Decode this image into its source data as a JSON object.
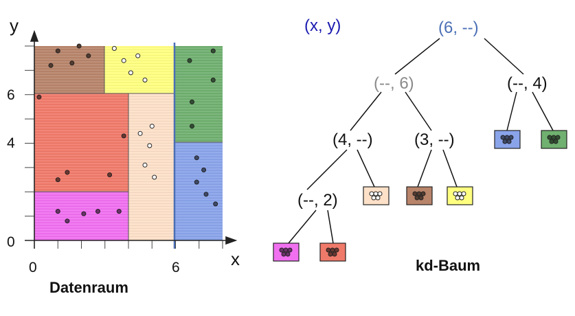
{
  "left_panel": {
    "axis_x_label": "x",
    "axis_y_label": "y",
    "tick_x": [
      "0",
      "6"
    ],
    "tick_y": [
      "0",
      "4",
      "6"
    ],
    "caption": "Datenraum",
    "region_colors": {
      "brown": "#b8846a",
      "yellow": "#ffff80",
      "green": "#70b070",
      "red": "#f07a6a",
      "peach": "#fde0c8",
      "blue": "#8aa4ea",
      "magenta": "#f070f0"
    },
    "points": {
      "brown": [
        [
          0.7,
          7.2
        ],
        [
          1.0,
          7.8
        ],
        [
          1.6,
          7.3
        ],
        [
          1.9,
          8.0
        ],
        [
          2.3,
          7.6
        ]
      ],
      "yellow": [
        [
          3.4,
          7.9
        ],
        [
          3.8,
          7.4
        ],
        [
          4.1,
          6.9
        ],
        [
          4.4,
          7.6
        ],
        [
          4.7,
          6.6
        ]
      ],
      "green": [
        [
          6.6,
          7.4
        ],
        [
          6.7,
          5.7
        ],
        [
          7.6,
          7.8
        ],
        [
          7.6,
          6.6
        ],
        [
          6.7,
          4.7
        ]
      ],
      "red": [
        [
          0.2,
          5.9
        ],
        [
          1.0,
          2.5
        ],
        [
          1.4,
          2.8
        ],
        [
          3.2,
          2.7
        ],
        [
          3.8,
          4.3
        ]
      ],
      "peach": [
        [
          4.5,
          4.4
        ],
        [
          4.9,
          3.9
        ],
        [
          5.0,
          4.7
        ],
        [
          4.7,
          3.1
        ],
        [
          5.1,
          2.6
        ]
      ],
      "blue": [
        [
          6.9,
          3.4
        ],
        [
          7.2,
          2.9
        ],
        [
          6.9,
          2.4
        ],
        [
          7.3,
          1.9
        ],
        [
          7.7,
          1.5
        ]
      ],
      "magenta": [
        [
          1.0,
          1.2
        ],
        [
          1.4,
          0.8
        ],
        [
          2.1,
          1.1
        ],
        [
          2.7,
          1.2
        ],
        [
          3.6,
          1.2
        ]
      ]
    }
  },
  "tree": {
    "legend": "(x, y)",
    "root": "(6, --)",
    "left_child": "(--, 6)",
    "right_child": "(--, 4)",
    "node_4": "(4, --)",
    "node_3": "(3, --)",
    "node_2": "(--, 2)",
    "caption": "kd-Baum",
    "colors": {
      "legend": "#1a1ab0",
      "root": "#4a6fb5",
      "gray": "#8a8a8a",
      "black": "#111111"
    }
  }
}
